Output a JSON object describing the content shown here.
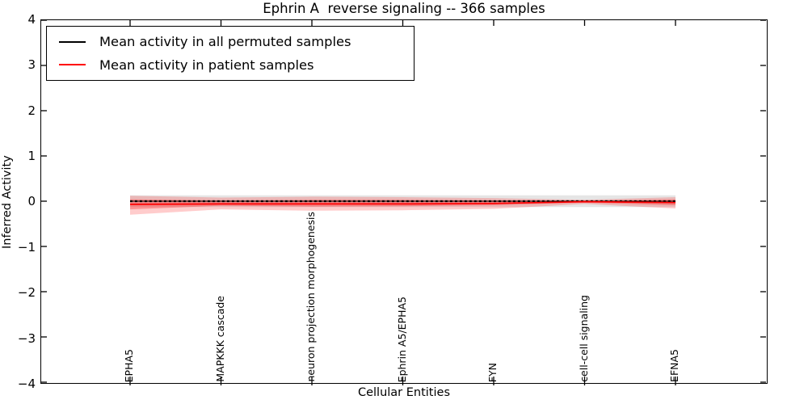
{
  "title": "Ephrin A  reverse signaling -- 366 samples",
  "axes": {
    "xlabel": "Cellular Entities",
    "ylabel": "Inferred Activity",
    "yticks": [
      {
        "value": 4,
        "label": "4"
      },
      {
        "value": 3,
        "label": "3"
      },
      {
        "value": 2,
        "label": "2"
      },
      {
        "value": 1,
        "label": "1"
      },
      {
        "value": 0,
        "label": "0"
      },
      {
        "value": -1,
        "label": "−1"
      },
      {
        "value": -2,
        "label": "−2"
      },
      {
        "value": -3,
        "label": "−3"
      },
      {
        "value": -4,
        "label": "−4"
      }
    ]
  },
  "chart_data": {
    "type": "line",
    "title": "Ephrin A  reverse signaling -- 366 samples",
    "xlabel": "Cellular Entities",
    "ylabel": "Inferred Activity",
    "ylim": [
      -4,
      4
    ],
    "grid": false,
    "legend_position": "upper left",
    "categories": [
      "EPHA5",
      "MAPKKK cascade",
      "neuron projection morphogenesis",
      "Ephrin A5/EPHA5",
      "FYN",
      "cell-cell signaling",
      "EFNA5"
    ],
    "series": [
      {
        "name": "Mean activity in all permuted samples",
        "color": "#000000",
        "style": "dashed",
        "values": [
          0,
          0,
          0,
          0,
          0,
          0,
          0
        ],
        "band": {
          "upper": [
            0.13,
            0.13,
            0.13,
            0.13,
            0.13,
            0.13,
            0.13
          ],
          "lower": [
            -0.13,
            -0.13,
            -0.13,
            -0.13,
            -0.13,
            -0.13,
            -0.13
          ],
          "color": "rgba(0,0,0,0.10)"
        }
      },
      {
        "name": "Mean activity in patient samples",
        "color": "#ff0000",
        "style": "solid",
        "values": [
          -0.07,
          -0.06,
          -0.06,
          -0.06,
          -0.05,
          -0.01,
          -0.03
        ],
        "band": {
          "upper": [
            0.12,
            0.08,
            0.1,
            0.09,
            0.07,
            0.03,
            0.09
          ],
          "lower": [
            -0.3,
            -0.18,
            -0.21,
            -0.2,
            -0.17,
            -0.06,
            -0.16
          ],
          "color": "rgba(255,0,0,0.20)"
        },
        "inner_band": {
          "upper": [
            0.04,
            0.02,
            0.03,
            0.03,
            0.02,
            0.01,
            0.04
          ],
          "lower": [
            -0.18,
            -0.1,
            -0.12,
            -0.11,
            -0.09,
            -0.03,
            -0.09
          ],
          "color": "rgba(255,0,0,0.28)"
        }
      }
    ]
  }
}
